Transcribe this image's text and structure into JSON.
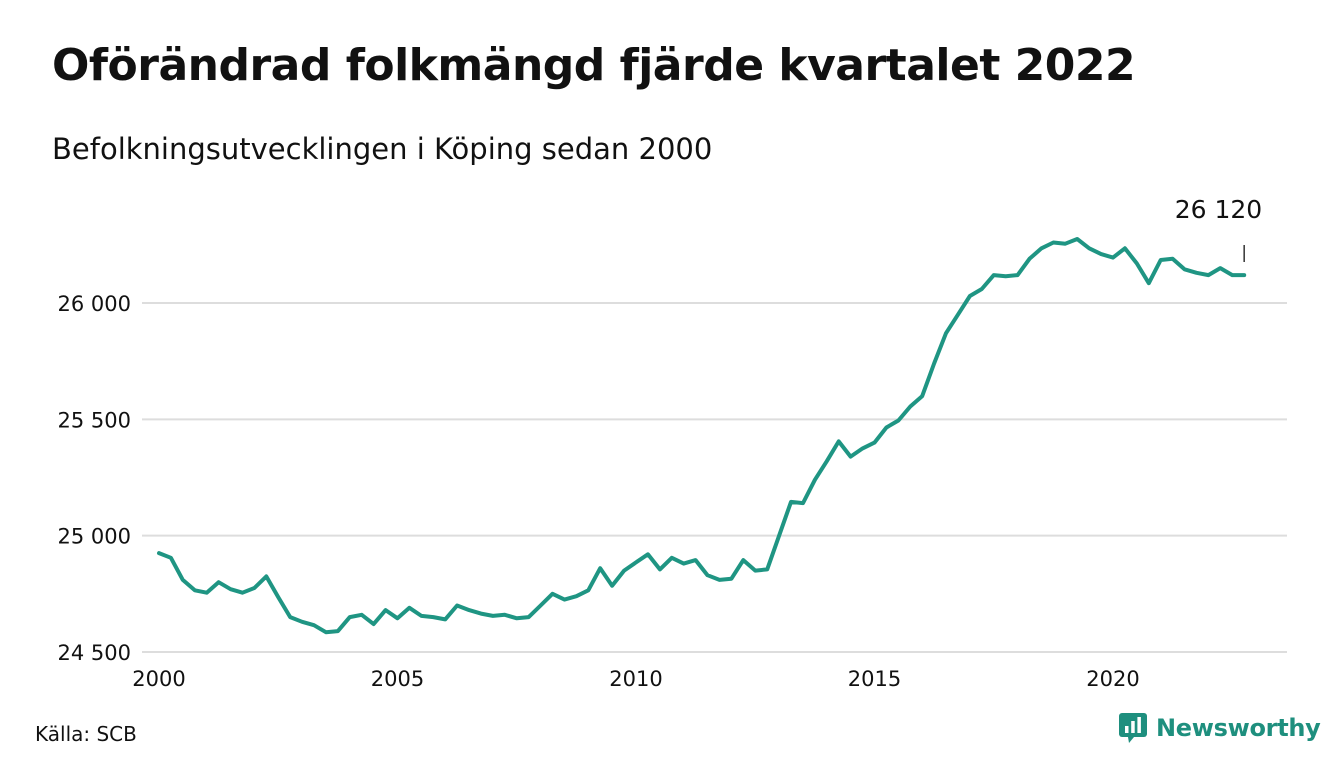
{
  "title": "Oförändrad folkmängd fjärde kvartalet 2022",
  "subtitle": "Befolkningsutvecklingen i Köping sedan 2000",
  "source": "Källa: SCB",
  "brand": {
    "name": "Newsworthy",
    "icon": "newsworthy-logo-icon"
  },
  "colors": {
    "line": "#1f9583",
    "grid": "#dddddd",
    "text": "#111111",
    "brand": "#1e8f7e"
  },
  "chart_data": {
    "type": "line",
    "title": "Oförändrad folkmängd fjärde kvartalet 2022",
    "subtitle": "Befolkningsutvecklingen i Köping sedan 2000",
    "x_ticks": [
      2000,
      2005,
      2010,
      2015,
      2020
    ],
    "y_ticks": [
      24500,
      25000,
      25500,
      26000
    ],
    "y_tick_labels": [
      "24 500",
      "25 000",
      "25 500",
      "26 000"
    ],
    "ylim": [
      24500,
      26200
    ],
    "grid": "horizontal",
    "last_value_label": "26 120",
    "series": [
      {
        "x": [
          2000.0,
          2000.25,
          2000.5,
          2000.75,
          2001.0,
          2001.25,
          2001.5,
          2001.75,
          2002.0,
          2002.25,
          2002.5,
          2002.75,
          2003.0,
          2003.25,
          2003.5,
          2003.75,
          2004.0,
          2004.25,
          2004.5,
          2004.75,
          2005.0,
          2005.25,
          2005.5,
          2005.75,
          2006.0,
          2006.25,
          2006.5,
          2006.75,
          2007.0,
          2007.25,
          2007.5,
          2007.75,
          2008.0,
          2008.25,
          2008.5,
          2008.75,
          2009.0,
          2009.25,
          2009.5,
          2009.75,
          2010.0,
          2010.25,
          2010.5,
          2010.75,
          2011.0,
          2011.25,
          2011.5,
          2011.75,
          2012.0,
          2012.25,
          2012.5,
          2012.75,
          2013.0,
          2013.25,
          2013.5,
          2013.75,
          2014.0,
          2014.25,
          2014.5,
          2014.75,
          2015.0,
          2015.25,
          2015.5,
          2015.75,
          2016.0,
          2016.25,
          2016.5,
          2016.75,
          2017.0,
          2017.25,
          2017.5,
          2017.75,
          2018.0,
          2018.25,
          2018.5,
          2018.75,
          2019.0,
          2019.25,
          2019.5,
          2019.75,
          2020.0,
          2020.25,
          2020.5,
          2020.75,
          2021.0,
          2021.25,
          2021.5,
          2021.75,
          2022.0,
          2022.25,
          2022.5,
          2022.75
        ],
        "y": [
          24925,
          24905,
          24810,
          24765,
          24755,
          24800,
          24770,
          24755,
          24775,
          24825,
          24735,
          24650,
          24630,
          24615,
          24585,
          24590,
          24650,
          24660,
          24620,
          24680,
          24645,
          24690,
          24655,
          24650,
          24640,
          24700,
          24680,
          24665,
          24655,
          24660,
          24645,
          24650,
          24700,
          24750,
          24725,
          24740,
          24765,
          24860,
          24785,
          24850,
          24885,
          24920,
          24855,
          24905,
          24880,
          24895,
          24830,
          24810,
          24815,
          24895,
          24850,
          24855,
          25000,
          25145,
          25140,
          25240,
          25320,
          25405,
          25340,
          25375,
          25400,
          25465,
          25495,
          25555,
          25600,
          25740,
          25870,
          25950,
          26030,
          26060,
          26120,
          26115,
          26120,
          26190,
          26235,
          26260,
          26255,
          26275,
          26235,
          26210,
          26195,
          26235,
          26170,
          26085,
          26185,
          26190,
          26145,
          26130,
          26120,
          26150,
          26120,
          26120
        ]
      }
    ]
  }
}
